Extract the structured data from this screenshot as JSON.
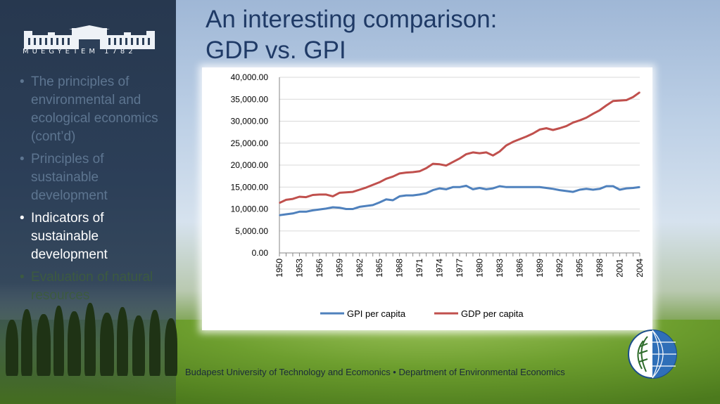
{
  "sidebar": {
    "logo_text": "MŰEGYETEM 1782",
    "items": [
      {
        "label": "The principles of environmental and ecological economics (cont’d)",
        "state": "inactive"
      },
      {
        "label": "Principles of sustainable development",
        "state": "inactive"
      },
      {
        "label": "Indicators of sustainable development",
        "state": "active"
      },
      {
        "label": "Evaluation of natural resources",
        "state": "faded"
      }
    ]
  },
  "slide": {
    "title_line1": "An interesting comparison:",
    "title_line2": "GDP vs. GPI"
  },
  "footer": {
    "text": "Budapest University of Technology and Ecomonics • Department of Environmental Economics"
  },
  "colors": {
    "gpi": "#4f81bd",
    "gdp": "#c0504d",
    "title": "#1f3a66"
  },
  "chart_data": {
    "type": "line",
    "title": "",
    "xlabel": "",
    "ylabel": "",
    "ylim": [
      0,
      40000
    ],
    "yticks": [
      "0.00",
      "5,000.00",
      "10,000.00",
      "15,000.00",
      "20,000.00",
      "25,000.00",
      "30,000.00",
      "35,000.00",
      "40,000.00"
    ],
    "xticks": [
      "1950",
      "1953",
      "1956",
      "1959",
      "1962",
      "1965",
      "1968",
      "1971",
      "1974",
      "1977",
      "1980",
      "1983",
      "1986",
      "1989",
      "1992",
      "1995",
      "1998",
      "2001",
      "2004"
    ],
    "x": [
      1950,
      1951,
      1952,
      1953,
      1954,
      1955,
      1956,
      1957,
      1958,
      1959,
      1960,
      1961,
      1962,
      1963,
      1964,
      1965,
      1966,
      1967,
      1968,
      1969,
      1970,
      1971,
      1972,
      1973,
      1974,
      1975,
      1976,
      1977,
      1978,
      1979,
      1980,
      1981,
      1982,
      1983,
      1984,
      1985,
      1986,
      1987,
      1988,
      1989,
      1990,
      1991,
      1992,
      1993,
      1994,
      1995,
      1996,
      1997,
      1998,
      1999,
      2000,
      2001,
      2002,
      2003,
      2004
    ],
    "grid": "horizontal",
    "legend": "bottom",
    "series": [
      {
        "name": "GPI per capita",
        "color": "#4f81bd",
        "values": [
          8600,
          8800,
          9000,
          9400,
          9400,
          9700,
          9900,
          10100,
          10400,
          10300,
          10000,
          10000,
          10500,
          10700,
          10900,
          11500,
          12200,
          12000,
          12900,
          13100,
          13100,
          13300,
          13600,
          14300,
          14700,
          14500,
          15000,
          15000,
          15300,
          14500,
          14800,
          14500,
          14700,
          15200,
          15000,
          15000,
          15000,
          15000,
          15000,
          15000,
          14800,
          14600,
          14300,
          14100,
          13900,
          14400,
          14600,
          14400,
          14600,
          15200,
          15200,
          14400,
          14700,
          14800,
          15000
        ]
      },
      {
        "name": "GDP per capita",
        "color": "#c0504d",
        "values": [
          11400,
          12100,
          12300,
          12800,
          12700,
          13200,
          13300,
          13300,
          12900,
          13700,
          13800,
          13900,
          14400,
          14900,
          15500,
          16100,
          16900,
          17400,
          18100,
          18300,
          18400,
          18600,
          19300,
          20300,
          20200,
          19900,
          20700,
          21500,
          22500,
          22900,
          22700,
          22900,
          22200,
          23100,
          24500,
          25300,
          25900,
          26500,
          27200,
          28100,
          28400,
          28000,
          28400,
          28900,
          29700,
          30200,
          30800,
          31700,
          32500,
          33600,
          34600,
          34700,
          34800,
          35500,
          36600
        ]
      }
    ]
  }
}
